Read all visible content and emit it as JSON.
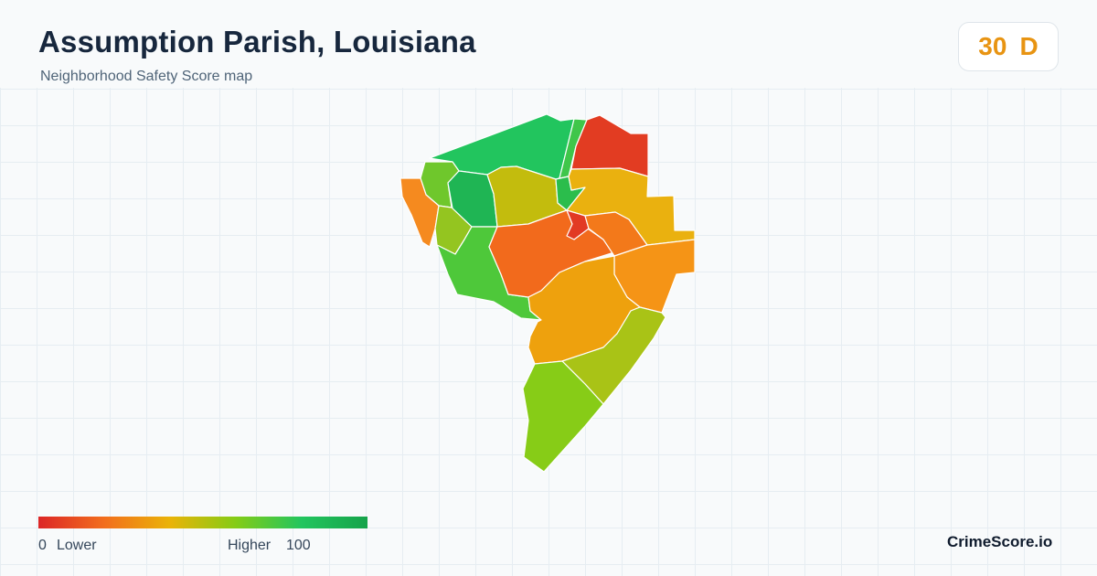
{
  "header": {
    "title": "Assumption Parish, Louisiana",
    "subtitle": "Neighborhood Safety Score map"
  },
  "score": {
    "value": "30",
    "grade": "D",
    "color": "#e89412"
  },
  "legend": {
    "min_value": "0",
    "min_label": "Lower",
    "max_label": "Higher",
    "max_value": "100",
    "colors": [
      "#dc2626",
      "#f26e1d",
      "#eab308",
      "#84cc16",
      "#22c55e",
      "#16a34a"
    ]
  },
  "brand": {
    "name": "CrimeScore.io"
  },
  "map": {
    "regions": [
      {
        "name": "northern-tract",
        "color": "#22c55e"
      },
      {
        "name": "northeast-strip",
        "color": "#3fc64a"
      },
      {
        "name": "northeast-corner",
        "color": "#e23c22"
      },
      {
        "name": "northwest-small",
        "color": "#6fc72c"
      },
      {
        "name": "northwest-center",
        "color": "#1fb554"
      },
      {
        "name": "north-central",
        "color": "#c3bc0d"
      },
      {
        "name": "small-green-east",
        "color": "#2bbd4c"
      },
      {
        "name": "east-upper",
        "color": "#eab10f"
      },
      {
        "name": "western-edge",
        "color": "#f58a1f"
      },
      {
        "name": "west-small",
        "color": "#94c520"
      },
      {
        "name": "west-lower",
        "color": "#4ec83a"
      },
      {
        "name": "central",
        "color": "#f26a1c"
      },
      {
        "name": "small-red-center",
        "color": "#e23a24"
      },
      {
        "name": "east-middle",
        "color": "#f3791a"
      },
      {
        "name": "east-far",
        "color": "#f59416"
      },
      {
        "name": "south-central",
        "color": "#eea10d"
      },
      {
        "name": "southeast",
        "color": "#a9c316"
      },
      {
        "name": "southern-tip",
        "color": "#87cc17"
      }
    ]
  }
}
